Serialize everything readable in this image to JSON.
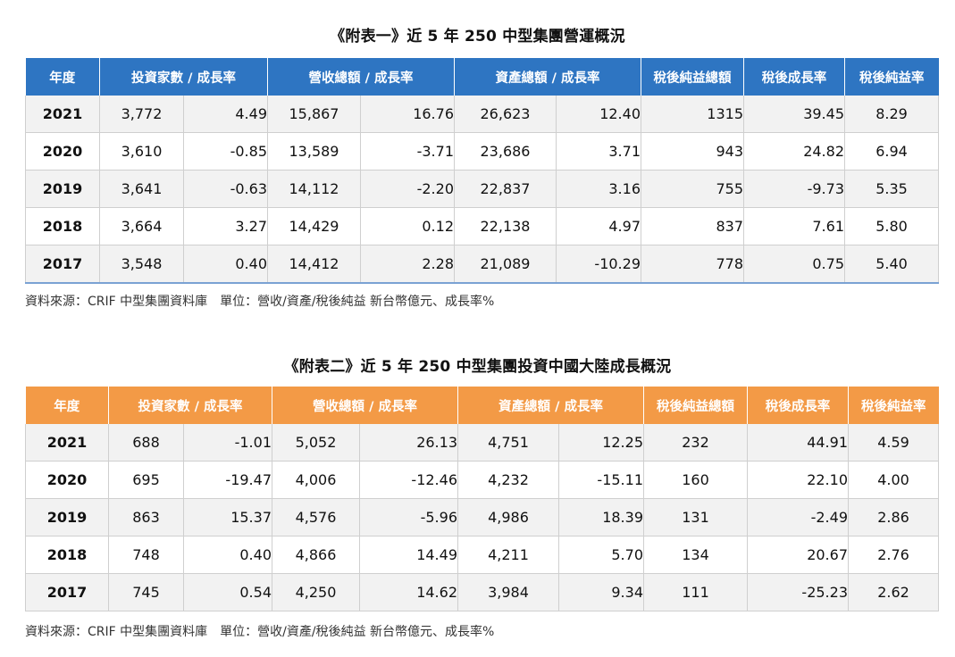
{
  "chart_data": [
    {
      "type": "table",
      "title": "《附表一》近 5 年 250 中型集團營運概況",
      "header_color": "#2e75c2",
      "headers": [
        "年度",
        "投資家數 / 成長率",
        "營收總額 / 成長率",
        "資產總額 / 成長率",
        "稅後純益總額",
        "稅後成長率",
        "稅後純益率"
      ],
      "rows": [
        [
          "2021",
          "3,772",
          "4.49",
          "15,867",
          "16.76",
          "26,623",
          "12.40",
          "1315",
          "39.45",
          "8.29"
        ],
        [
          "2020",
          "3,610",
          "-0.85",
          "13,589",
          "-3.71",
          "23,686",
          "3.71",
          "943",
          "24.82",
          "6.94"
        ],
        [
          "2019",
          "3,641",
          "-0.63",
          "14,112",
          "-2.20",
          "22,837",
          "3.16",
          "755",
          "-9.73",
          "5.35"
        ],
        [
          "2018",
          "3,664",
          "3.27",
          "14,429",
          "0.12",
          "22,138",
          "4.97",
          "837",
          "7.61",
          "5.80"
        ],
        [
          "2017",
          "3,548",
          "0.40",
          "14,412",
          "2.28",
          "21,089",
          "-10.29",
          "778",
          "0.75",
          "5.40"
        ]
      ],
      "source": "資料來源：CRIF 中型集團資料庫　單位：營收/資產/稅後純益  新台幣億元、成長率%"
    },
    {
      "type": "table",
      "title": "《附表二》近 5 年 250 中型集團投資中國大陸成長概況",
      "header_color": "#f39a46",
      "headers": [
        "年度",
        "投資家數 / 成長率",
        "營收總額 / 成長率",
        "資產總額 / 成長率",
        "稅後純益總額",
        "稅後成長率",
        "稅後純益率"
      ],
      "rows": [
        [
          "2021",
          "688",
          "-1.01",
          "5,052",
          "26.13",
          "4,751",
          "12.25",
          "232",
          "44.91",
          "4.59"
        ],
        [
          "2020",
          "695",
          "-19.47",
          "4,006",
          "-12.46",
          "4,232",
          "-15.11",
          "160",
          "22.10",
          "4.00"
        ],
        [
          "2019",
          "863",
          "15.37",
          "4,576",
          "-5.96",
          "4,986",
          "18.39",
          "131",
          "-2.49",
          "2.86"
        ],
        [
          "2018",
          "748",
          "0.40",
          "4,866",
          "14.49",
          "4,211",
          "5.70",
          "134",
          "20.67",
          "2.76"
        ],
        [
          "2017",
          "745",
          "0.54",
          "4,250",
          "14.62",
          "3,984",
          "9.34",
          "111",
          "-25.23",
          "2.62"
        ]
      ],
      "source": "資料來源：CRIF 中型集團資料庫　單位：營收/資產/稅後純益  新台幣億元、成長率%"
    }
  ]
}
